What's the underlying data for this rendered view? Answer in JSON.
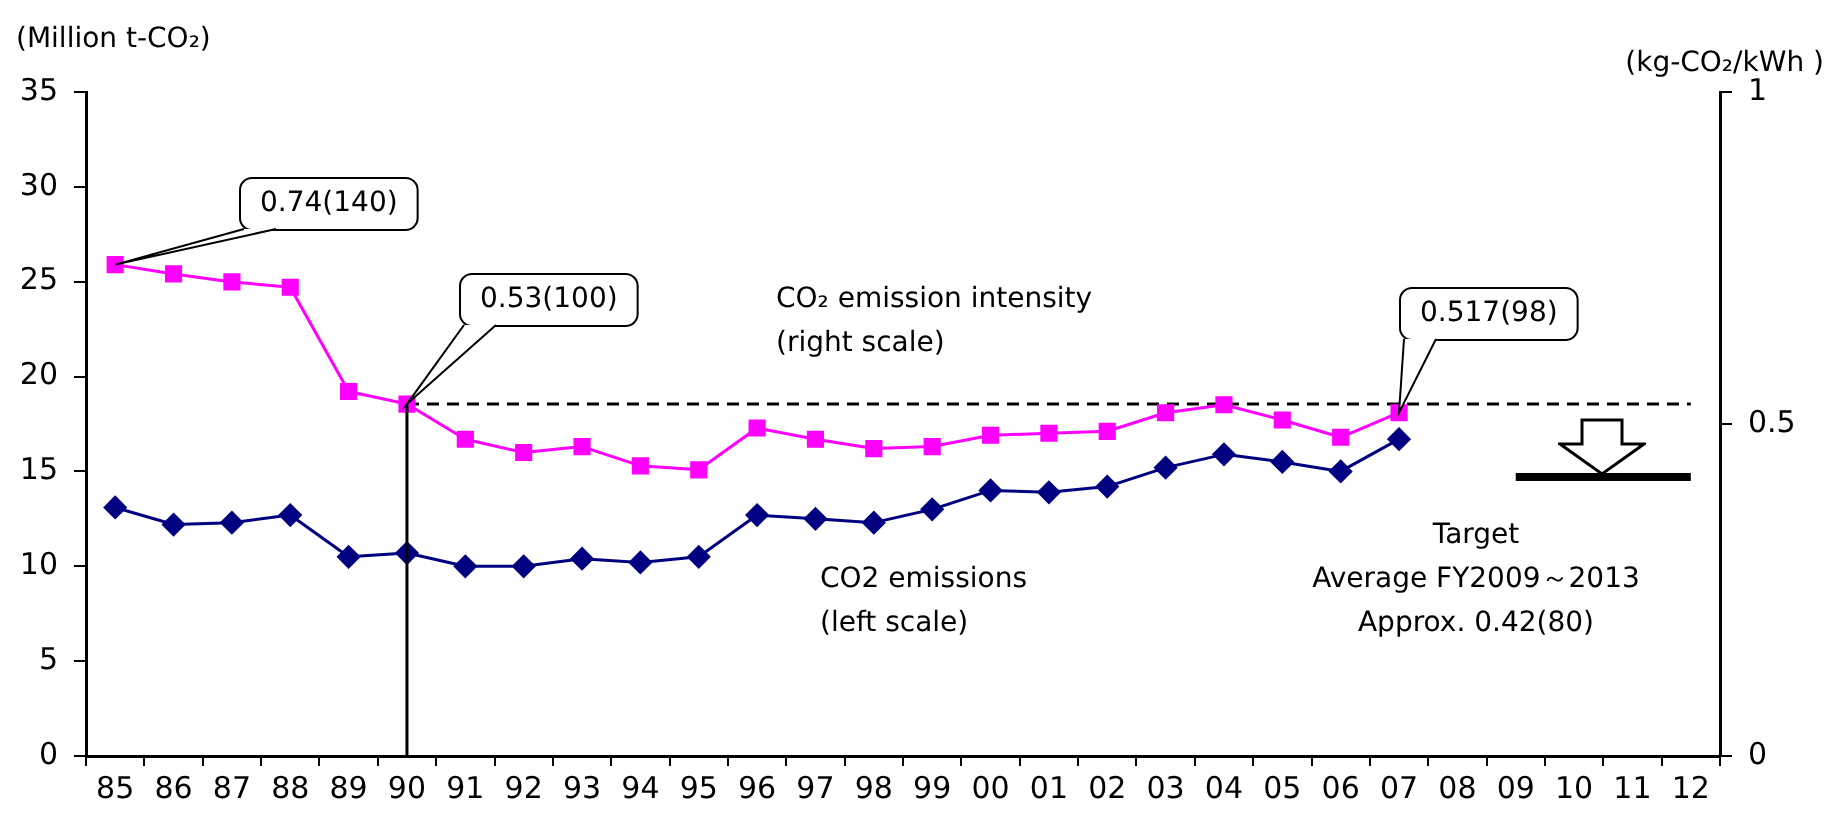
{
  "chart_data": {
    "type": "line",
    "ylabel": "(Million t-CO₂)",
    "y2label": "(kg-CO₂/kWh )",
    "categories": [
      "85",
      "86",
      "87",
      "88",
      "89",
      "90",
      "91",
      "92",
      "93",
      "94",
      "95",
      "96",
      "97",
      "98",
      "99",
      "00",
      "01",
      "02",
      "03",
      "04",
      "05",
      "06",
      "07",
      "08",
      "09",
      "10",
      "11",
      "12"
    ],
    "series": [
      {
        "name": "CO₂ emission intensity\n(right scale)",
        "color": "#ff00ff",
        "axis": "y2",
        "marker": "square",
        "values": [
          0.74,
          0.726,
          0.714,
          0.706,
          0.549,
          0.53,
          0.477,
          0.457,
          0.466,
          0.437,
          0.431,
          0.494,
          0.477,
          0.463,
          0.466,
          0.483,
          0.486,
          0.489,
          0.517,
          0.529,
          0.506,
          0.48,
          0.517,
          null,
          null,
          null,
          null,
          null
        ]
      },
      {
        "name": "CO2 emissions\n(left scale)",
        "color": "#000080",
        "marker": "diamond",
        "values": [
          13.1,
          12.2,
          12.3,
          12.7,
          10.5,
          10.7,
          10.0,
          10.0,
          10.4,
          10.2,
          10.5,
          12.7,
          12.5,
          12.3,
          13.0,
          14.0,
          13.9,
          14.2,
          15.2,
          15.9,
          15.5,
          15.0,
          16.7,
          null,
          null,
          null,
          null,
          null
        ]
      },
      {
        "color": "#000000",
        "axis": "y2",
        "marker": "none",
        "line_style": "dashed",
        "x": [
          "90",
          "12"
        ],
        "values": [
          0.53,
          0.53
        ]
      },
      {
        "color": "#000000",
        "axis": "y2",
        "marker": "none",
        "x": [
          "09",
          "12"
        ],
        "values": [
          0.42,
          0.42
        ]
      }
    ],
    "ylim": [
      0,
      35
    ],
    "yticks": [
      0,
      5,
      10,
      15,
      20,
      25,
      30,
      35
    ],
    "y2lim": [
      0,
      1
    ],
    "y2ticks": [
      0,
      0.5,
      1
    ],
    "ref_lines": [
      {
        "axis": "x",
        "value": "90",
        "color": "#000000"
      }
    ],
    "annotations": [
      "0.74(140)",
      "0.53(100)",
      "0.517(98)",
      "Target\nAverage FY2009～2013\nApprox. 0.42(80)"
    ],
    "grid": false,
    "legend": false
  }
}
